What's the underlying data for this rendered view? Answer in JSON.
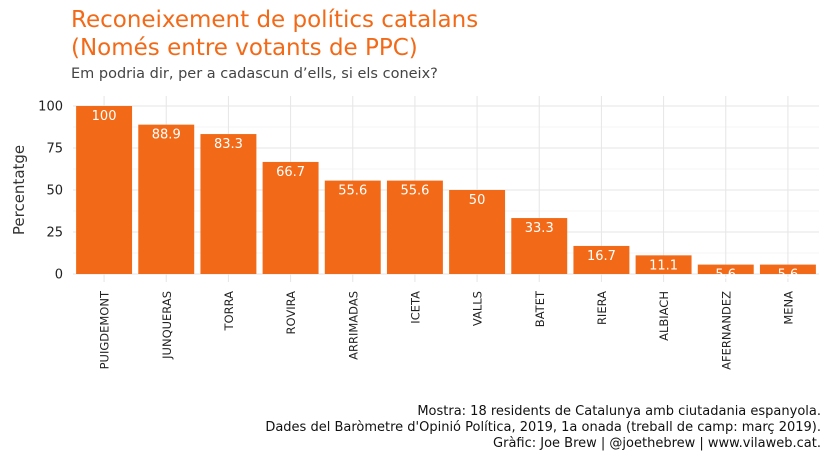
{
  "title_lines": [
    "Reconeixement de polítics catalans",
    "(Només entre votants de PPC)"
  ],
  "subtitle": "Em podria dir, per a cadascun d’ells, si els coneix?",
  "caption_lines": [
    "Mostra: 18 residents de Catalunya amb ciutadania espanyola.",
    "Dades del Baròmetre d'Opinió Política, 2019, 1a onada (treball de camp: març 2019).",
    "Gràfic: Joe Brew | @joethebrew | www.vilaweb.cat."
  ],
  "colors": {
    "bar": "#f26a18",
    "title": "#f26a18",
    "grid": "#e6e6e6",
    "label": "#ffffff"
  },
  "chart_data": {
    "type": "bar",
    "title": "Reconeixement de polítics catalans (Només entre votants de PPC)",
    "xlabel": "",
    "ylabel": "Percentatge",
    "ylim": [
      0,
      100
    ],
    "yticks": [
      0,
      25,
      50,
      75,
      100
    ],
    "grid": true,
    "categories": [
      "PUIGDEMONT",
      "JUNQUERAS",
      "TORRA",
      "ROVIRA",
      "ARRIMADAS",
      "ICETA",
      "VALLS",
      "BATET",
      "RIERA",
      "ALBIACH",
      "AFERNANDEZ",
      "MENA"
    ],
    "values": [
      100,
      88.9,
      83.3,
      66.7,
      55.6,
      55.6,
      50,
      33.3,
      16.7,
      11.1,
      5.6,
      5.6
    ],
    "labels": [
      "100",
      "88.9",
      "83.3",
      "66.7",
      "55.6",
      "55.6",
      "50",
      "33.3",
      "16.7",
      "11.1",
      "5.6",
      "5.6"
    ]
  }
}
